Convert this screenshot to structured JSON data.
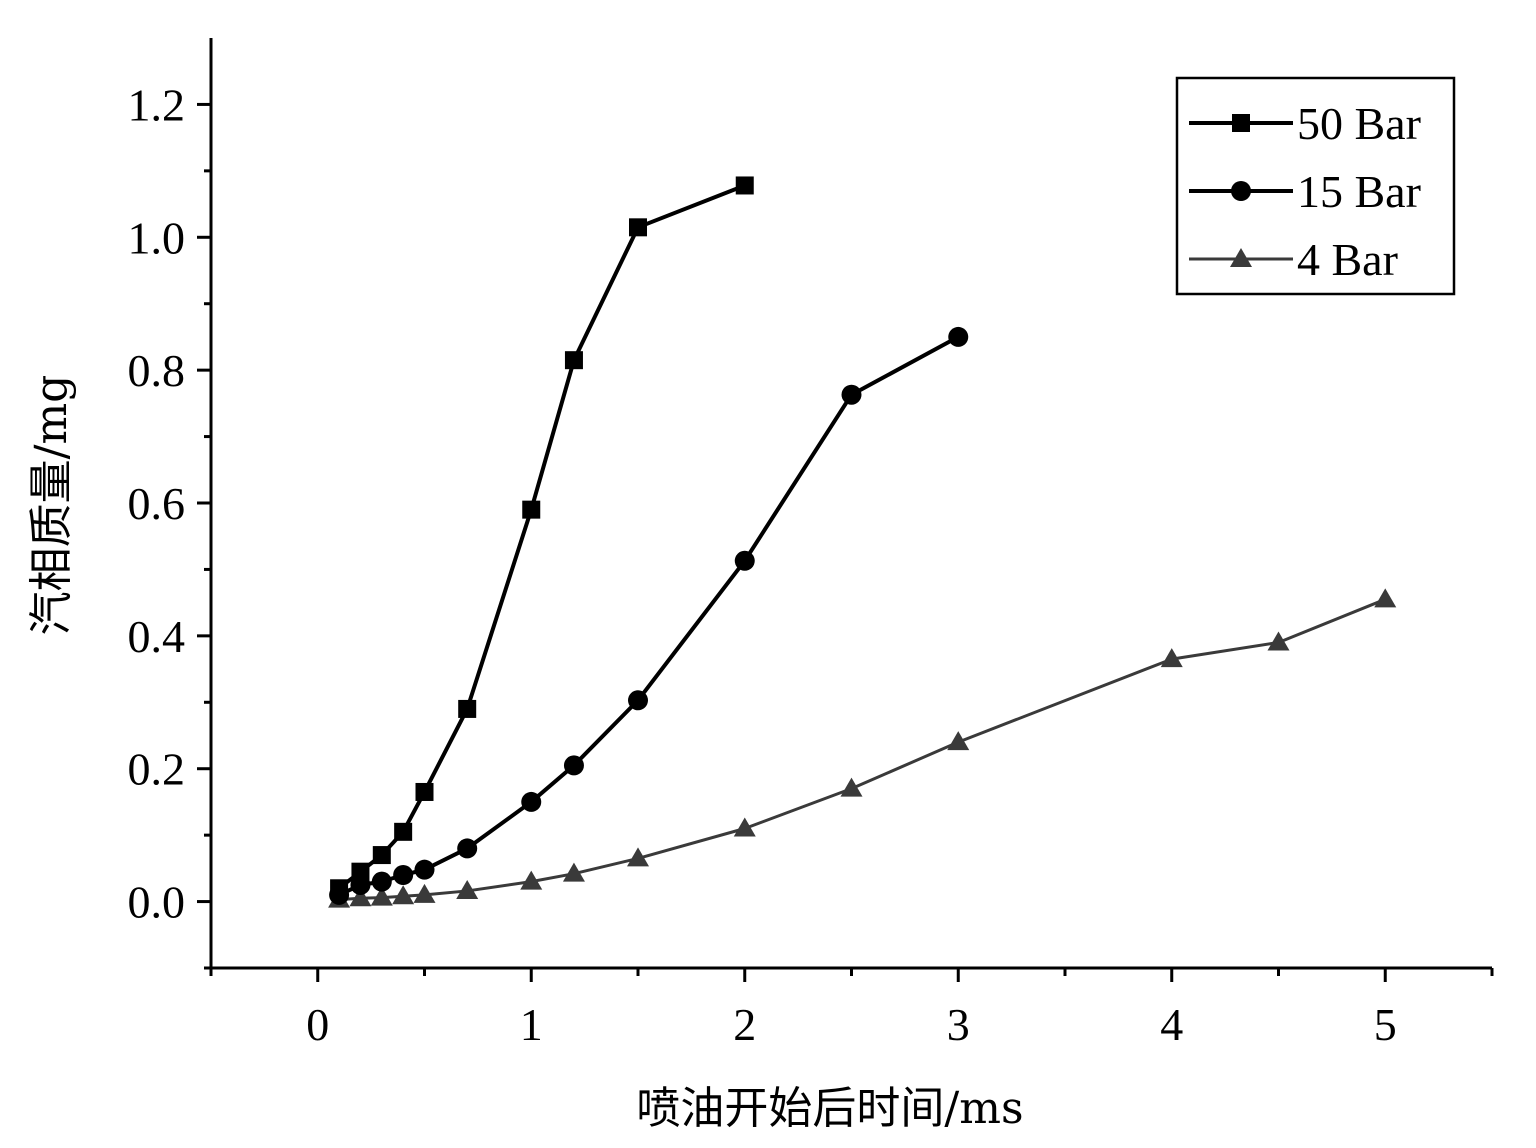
{
  "chart_data": {
    "type": "line",
    "title": "",
    "xlabel": "喷油开始后时间/ms",
    "ylabel": "汽相质量/mg",
    "xlim": [
      -0.5,
      5.5
    ],
    "ylim": [
      -0.1,
      1.3
    ],
    "xticks": [
      0,
      1,
      2,
      3,
      4,
      5
    ],
    "xtick_labels": [
      "0",
      "1",
      "2",
      "3",
      "4",
      "5"
    ],
    "yticks": [
      0.0,
      0.2,
      0.4,
      0.6,
      0.8,
      1.0,
      1.2
    ],
    "ytick_labels": [
      "0.0",
      "0.2",
      "0.4",
      "0.6",
      "0.8",
      "1.0",
      "1.2"
    ],
    "grid": false,
    "legend_position": "top-right",
    "series": [
      {
        "name": "50 Bar",
        "marker": "square",
        "color": "#000000",
        "x": [
          0.1,
          0.2,
          0.3,
          0.4,
          0.5,
          0.7,
          1.0,
          1.2,
          1.5,
          2.0
        ],
        "y": [
          0.02,
          0.045,
          0.07,
          0.105,
          0.165,
          0.29,
          0.59,
          0.815,
          1.015,
          1.078
        ]
      },
      {
        "name": "15 Bar",
        "marker": "circle",
        "color": "#000000",
        "x": [
          0.1,
          0.2,
          0.3,
          0.4,
          0.5,
          0.7,
          1.0,
          1.2,
          1.5,
          2.0,
          2.5,
          3.0
        ],
        "y": [
          0.01,
          0.025,
          0.03,
          0.04,
          0.048,
          0.08,
          0.15,
          0.205,
          0.303,
          0.513,
          0.763,
          0.85
        ]
      },
      {
        "name": "4 Bar",
        "marker": "triangle",
        "color": "#3a3a3a",
        "x": [
          0.1,
          0.2,
          0.3,
          0.4,
          0.5,
          0.7,
          1.0,
          1.2,
          1.5,
          2.0,
          2.5,
          3.0,
          4.0,
          4.5,
          5.0
        ],
        "y": [
          0.003,
          0.005,
          0.006,
          0.008,
          0.01,
          0.016,
          0.03,
          0.042,
          0.065,
          0.11,
          0.17,
          0.24,
          0.365,
          0.39,
          0.455
        ]
      }
    ]
  }
}
